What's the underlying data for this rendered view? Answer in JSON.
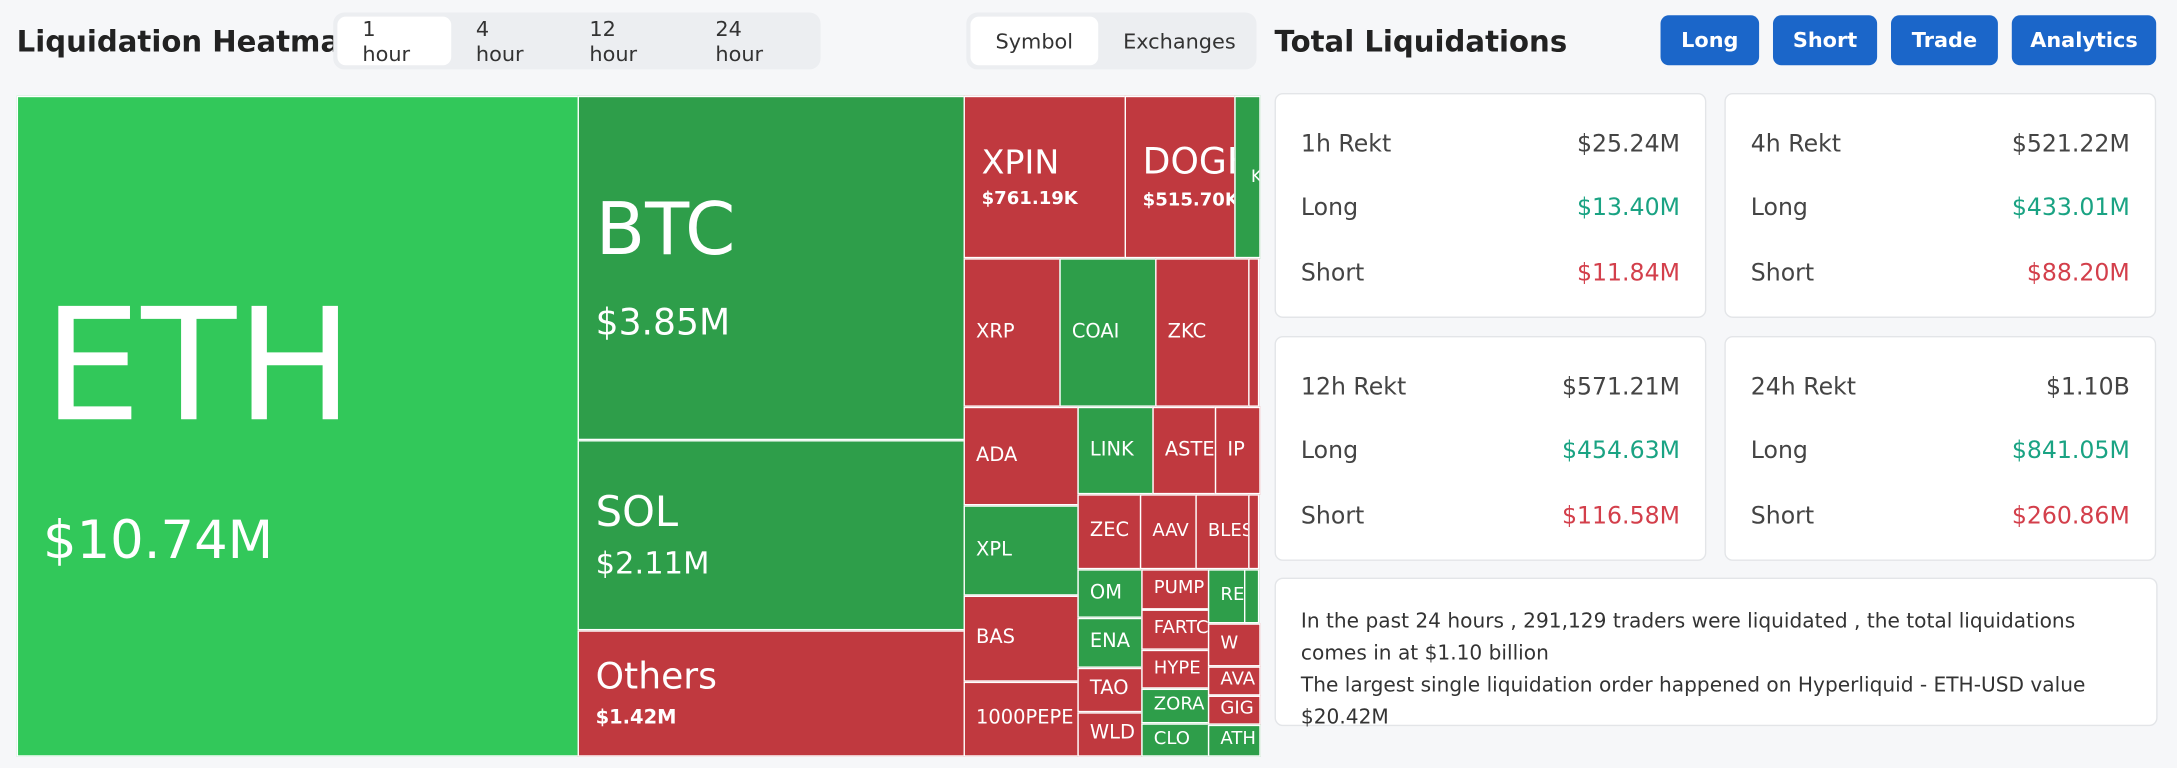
{
  "header": {
    "title": "Liquidation Heatmap",
    "tabs": [
      "1 hour",
      "4 hour",
      "12 hour",
      "24 hour"
    ],
    "view_tabs": [
      "Symbol",
      "Exchanges"
    ]
  },
  "panel": {
    "title": "Total Liquidations",
    "buttons": [
      "Long",
      "Short",
      "Trade",
      "Analytics"
    ],
    "cards": [
      {
        "title": "1h Rekt",
        "total": "$25.24M",
        "rows": [
          {
            "label": "Long",
            "value": "$13.40M"
          },
          {
            "label": "Short",
            "value": "$11.84M"
          }
        ]
      },
      {
        "title": "4h Rekt",
        "total": "$521.22M",
        "rows": [
          {
            "label": "Long",
            "value": "$433.01M"
          },
          {
            "label": "Short",
            "value": "$88.20M"
          }
        ]
      },
      {
        "title": "12h Rekt",
        "total": "$571.21M",
        "rows": [
          {
            "label": "Long",
            "value": "$454.63M"
          },
          {
            "label": "Short",
            "value": "$116.58M"
          }
        ]
      },
      {
        "title": "24h Rekt",
        "total": "$1.10B",
        "rows": [
          {
            "label": "Long",
            "value": "$841.05M"
          },
          {
            "label": "Short",
            "value": "$260.86M"
          }
        ]
      }
    ],
    "info": [
      "In the past 24 hours , 291,129 traders were liquidated , the total liquidations comes in at $1.10 billion",
      "The largest single liquidation order happened on Hyperliquid - ETH-USD value $20.42M"
    ]
  },
  "heatmap": {
    "tiles": [
      {
        "label": "ETH",
        "value": "$10.74M"
      },
      {
        "label": "BTC",
        "value": "$3.85M"
      },
      {
        "label": "SOL",
        "value": "$2.11M"
      },
      {
        "label": "Others",
        "value": "$1.42M"
      },
      {
        "label": "XPIN",
        "value": "$761.19K"
      },
      {
        "label": "DOGE",
        "value": "$515.70K"
      },
      {
        "label": "K"
      },
      {
        "label": "XRP"
      },
      {
        "label": "COAI"
      },
      {
        "label": "ZKC"
      },
      {
        "label": "ADA"
      },
      {
        "label": "LINK"
      },
      {
        "label": "ASTE"
      },
      {
        "label": "IP"
      },
      {
        "label": "XPL"
      },
      {
        "label": "ZEC"
      },
      {
        "label": "AAV"
      },
      {
        "label": "BLES"
      },
      {
        "label": "BAS"
      },
      {
        "label": "1000PEPE"
      },
      {
        "label": "OM"
      },
      {
        "label": "ENA"
      },
      {
        "label": "TAO"
      },
      {
        "label": "WLD"
      },
      {
        "label": "PUMP"
      },
      {
        "label": "FARTC"
      },
      {
        "label": "HYPE"
      },
      {
        "label": "ZORA"
      },
      {
        "label": "CLO"
      },
      {
        "label": "RE"
      },
      {
        "label": "W"
      },
      {
        "label": "AVA"
      },
      {
        "label": "GIG"
      },
      {
        "label": "ATH"
      }
    ]
  }
}
